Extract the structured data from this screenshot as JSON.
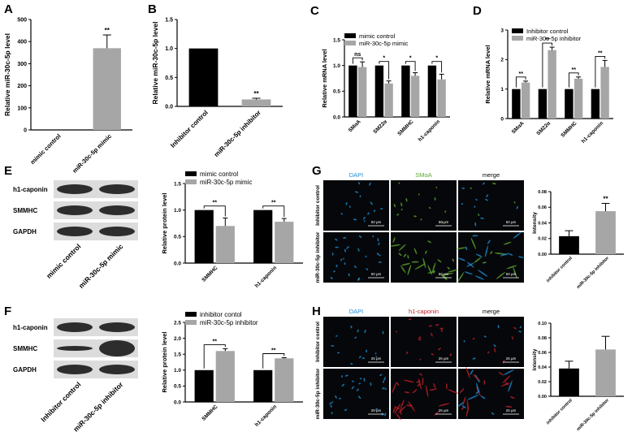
{
  "colors": {
    "black": "#000000",
    "gray": "#a6a6a6",
    "dapi": "#1f8fd6",
    "smoa": "#5fa82e",
    "h1": "#c0202a"
  },
  "panels": {
    "A": "A",
    "B": "B",
    "C": "C",
    "D": "D",
    "E": "E",
    "F": "F",
    "G": "G",
    "H": "H"
  },
  "chart_data": [
    {
      "id": "A",
      "type": "bar",
      "ylabel": "Relative miR-30c-5p level",
      "categories": [
        "mimic control",
        "miR-30c-5p mimic"
      ],
      "values": [
        1,
        370
      ],
      "errors": [
        0,
        60
      ],
      "ylim": [
        0,
        500
      ],
      "yticks": [
        0,
        100,
        200,
        300,
        400,
        500
      ],
      "colors": [
        "#000000",
        "#a6a6a6"
      ],
      "sig": [
        {
          "bar": 1,
          "label": "**"
        }
      ]
    },
    {
      "id": "B",
      "type": "bar",
      "ylabel": "Relative miR-30c-5p level",
      "categories": [
        "Inhibitor control",
        "miR-30c-5p inhibitor"
      ],
      "values": [
        1.0,
        0.12
      ],
      "errors": [
        0,
        0.02
      ],
      "ylim": [
        0,
        1.5
      ],
      "yticks": [
        "0.0",
        "0.5",
        "1.0",
        "1.5"
      ],
      "colors": [
        "#000000",
        "#a6a6a6"
      ],
      "sig": [
        {
          "bar": 1,
          "label": "**"
        }
      ]
    },
    {
      "id": "C",
      "type": "bar",
      "ylabel": "Relative mRNA level",
      "categories": [
        "SMαA",
        "SM22α",
        "SMMHC",
        "h1-caponin"
      ],
      "series": [
        {
          "name": "mimic control",
          "values": [
            1,
            1,
            1,
            1
          ],
          "errors": [
            0,
            0,
            0,
            0
          ]
        },
        {
          "name": "miR-30c-5p mimic",
          "values": [
            0.97,
            0.65,
            0.8,
            0.73
          ],
          "errors": [
            0.1,
            0.05,
            0.06,
            0.1
          ]
        }
      ],
      "ylim": [
        0,
        1.5
      ],
      "yticks": [
        "0.0",
        "0.5",
        "1.0",
        "1.5"
      ],
      "sig": [
        "ns",
        "*",
        "*",
        "*"
      ]
    },
    {
      "id": "D",
      "type": "bar",
      "ylabel": "Relative mRNA level",
      "categories": [
        "SMαA",
        "SM22α",
        "SMMHC",
        "h1-caponin"
      ],
      "series": [
        {
          "name": "Inhibitor control",
          "values": [
            1,
            1,
            1,
            1
          ],
          "errors": [
            0,
            0,
            0,
            0
          ]
        },
        {
          "name": "miR-30c-5p inhibitor",
          "values": [
            1.22,
            2.32,
            1.35,
            1.75
          ],
          "errors": [
            0.05,
            0.1,
            0.06,
            0.22
          ]
        }
      ],
      "ylim": [
        0,
        3
      ],
      "yticks": [
        "0",
        "1",
        "2",
        "3"
      ],
      "sig": [
        "**",
        "**",
        "**",
        "**"
      ]
    },
    {
      "id": "E",
      "type": "bar",
      "ylabel": "Relative protein level",
      "categories": [
        "SMMHC",
        "h1-caponin"
      ],
      "series": [
        {
          "name": "mimic control",
          "values": [
            1,
            1
          ],
          "errors": [
            0,
            0
          ]
        },
        {
          "name": "miR-30c-5p mimic",
          "values": [
            0.7,
            0.78
          ],
          "errors": [
            0.15,
            0.06
          ]
        }
      ],
      "ylim": [
        0,
        1.5
      ],
      "yticks": [
        "0.0",
        "0.5",
        "1.0",
        "1.5"
      ],
      "sig": [
        "**",
        "**"
      ]
    },
    {
      "id": "F",
      "type": "bar",
      "ylabel": "Relative protein level",
      "categories": [
        "SMMHC",
        "h1-caponin"
      ],
      "series": [
        {
          "name": "inhibitor contol",
          "values": [
            1,
            1
          ],
          "errors": [
            0,
            0
          ]
        },
        {
          "name": "miR-30c-5p inhibitor",
          "values": [
            1.6,
            1.37
          ],
          "errors": [
            0.07,
            0.02
          ]
        }
      ],
      "ylim": [
        0,
        2.5
      ],
      "yticks": [
        "0.0",
        "0.5",
        "1.0",
        "1.5",
        "2.0",
        "2.5"
      ],
      "sig": [
        "**",
        "**"
      ]
    },
    {
      "id": "G",
      "type": "bar",
      "ylabel": "Intensity",
      "categories": [
        "inhibitor control",
        "miR-30c-5p inhibitor"
      ],
      "values": [
        0.023,
        0.055
      ],
      "errors": [
        0.007,
        0.01
      ],
      "ylim": [
        0,
        0.08
      ],
      "yticks": [
        "0.00",
        "0.02",
        "0.04",
        "0.06",
        "0.08"
      ],
      "colors": [
        "#000000",
        "#a6a6a6"
      ],
      "sig": [
        {
          "bar": 1,
          "label": "**"
        }
      ]
    },
    {
      "id": "H",
      "type": "bar",
      "ylabel": "Intensity",
      "categories": [
        "inhibitor control",
        "miR-30c-5p inhibitor"
      ],
      "values": [
        0.038,
        0.064
      ],
      "errors": [
        0.01,
        0.018
      ],
      "ylim": [
        0,
        0.1
      ],
      "yticks": [
        "0.00",
        "0.02",
        "0.04",
        "0.06",
        "0.08",
        "0.10"
      ],
      "colors": [
        "#000000",
        "#a6a6a6"
      ],
      "sig": []
    }
  ],
  "western": {
    "E": {
      "rows": [
        "h1-caponin",
        "SMMHC",
        "GAPDH"
      ],
      "lanes": [
        "mimic control",
        "miR-30c-5p mimic"
      ]
    },
    "F": {
      "rows": [
        "h1-caponin",
        "SMMHC",
        "GAPDH"
      ],
      "lanes": [
        "Inhibitor control",
        "miR-30c-5p inhibitor"
      ]
    }
  },
  "micro": {
    "G": {
      "cols": [
        "DAPI",
        "SMαA",
        "merge"
      ],
      "rows": [
        "Inhibitor control",
        "miR-30c-5p inhibitor"
      ],
      "scale": "50 μm"
    },
    "H": {
      "cols": [
        "DAPI",
        "h1-caponin",
        "merge"
      ],
      "rows": [
        "Inhibitor control",
        "miR-30c-5p inhibitor"
      ],
      "scale": "25 μm"
    }
  }
}
